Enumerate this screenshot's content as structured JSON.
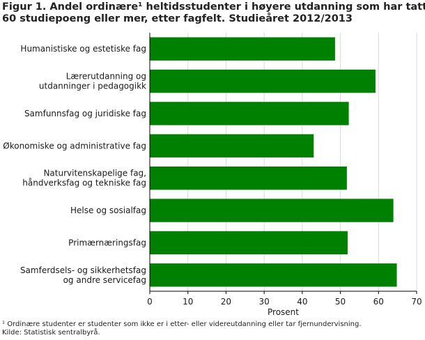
{
  "title_lines": [
    "Figur 1. Andel ordinære¹ heltidsstudenter i høyere utdanning som har tatt",
    "60 studiepoeng eller mer, etter fagfelt. Studieåret 2012/2013"
  ],
  "footnote_lines": [
    "¹ Ordinære studenter er studenter som ikke er i etter- eller videreutdanning eller tar fjernundervisning.",
    "Kilde: Statistisk sentralbyrå."
  ],
  "colors": {
    "bar": "#008000",
    "grid": "#d9d9d9",
    "axis": "#000000"
  },
  "chart_data": {
    "type": "bar",
    "orientation": "horizontal",
    "categories": [
      [
        "Humanistiske og estetiske fag"
      ],
      [
        "Lærerutdanning og",
        "utdanninger i pedagogikk"
      ],
      [
        "Samfunnsfag og juridiske fag"
      ],
      [
        "Økonomiske og administrative fag"
      ],
      [
        "Naturvitenskapelige fag,",
        "håndverksfag og tekniske fag"
      ],
      [
        "Helse og sosialfag"
      ],
      [
        "Primærnæringsfag"
      ],
      [
        "Samferdsels- og sikkerhetsfag",
        "og andre servicefag"
      ]
    ],
    "values": [
      48.6,
      59.2,
      52.2,
      43.0,
      51.7,
      63.9,
      51.9,
      64.8
    ],
    "xlabel": "Prosent",
    "xlim": [
      0,
      70
    ],
    "xticks": [
      0,
      10,
      20,
      30,
      40,
      50,
      60,
      70
    ],
    "grid": true,
    "legend": "none"
  }
}
